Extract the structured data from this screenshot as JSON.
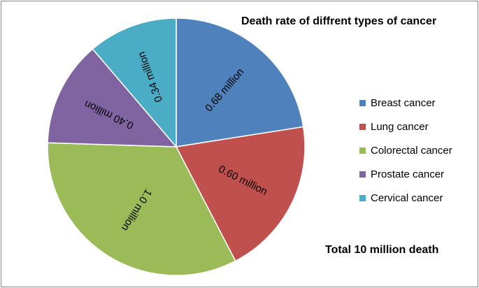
{
  "chart_data": {
    "type": "pie",
    "title": "Death rate of diffrent types of cancer",
    "annotation": "Total 10 million death",
    "legend_position": "right",
    "slices": [
      {
        "name": "Breast cancer",
        "value": 0.68,
        "label": "0.68 million",
        "color": "#4F81BD"
      },
      {
        "name": "Lung cancer",
        "value": 0.6,
        "label": "0.60 million",
        "color": "#C0504D"
      },
      {
        "name": "Colorectal cancer",
        "value": 1.0,
        "label": "1.0 million",
        "color": "#9BBB59"
      },
      {
        "name": "Prostate cancer",
        "value": 0.4,
        "label": "0.40 million",
        "color": "#8064A2"
      },
      {
        "name": "Cervical cancer",
        "value": 0.34,
        "label": "0.34 million",
        "color": "#4BACC6"
      }
    ]
  }
}
